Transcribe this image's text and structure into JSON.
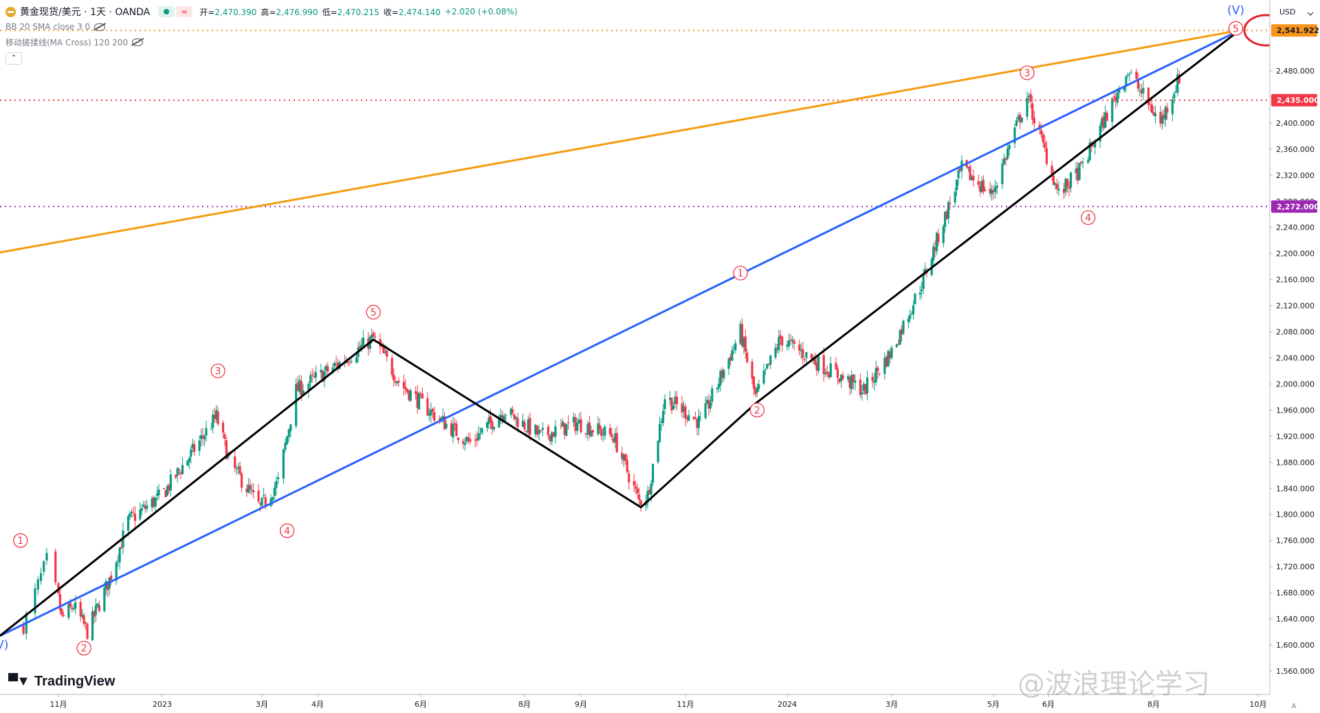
{
  "legend": {
    "symbol": "黄金现货/美元 · 1天 · OANDA",
    "open_label": "开",
    "open": "2,470.390",
    "high_label": "高",
    "high": "2,476.990",
    "low_label": "低",
    "low": "2,470.215",
    "close_label": "收",
    "close": "2,474.140",
    "change": "+2.020 (+0.08%)",
    "indicator1": "BB 20 SMA close 3 0",
    "indicator2": "移动搓揉线(MA Cross) 120 200",
    "collapse_glyph": "⌃"
  },
  "currency": "USD",
  "logo_text": "TradingView",
  "watermark": "@波浪理论学习",
  "colors": {
    "up": "#089981",
    "down": "#f23645",
    "blue": "#2962ff",
    "orange": "#f7931a",
    "black": "#000000",
    "red_line": "#e0212b",
    "purple": "#9c27b0",
    "orange_line": "#f39c12"
  },
  "chart_data": {
    "type": "candlestick",
    "title": "黄金现货/美元 · 1天 · OANDA",
    "ylim": [
      1580,
      2580
    ],
    "y_ticks": [
      "2,480.000",
      "2,440.000",
      "2,400.000",
      "2,360.000",
      "2,320.000",
      "2,280.000",
      "2,240.000",
      "2,200.000",
      "2,160.000",
      "2,120.000",
      "2,080.000",
      "2,040.000",
      "2,000.000",
      "1,960.000",
      "1,920.000",
      "1,880.000",
      "1,840.000",
      "1,800.000",
      "1,760.000",
      "1,720.000",
      "1,680.000",
      "1,640.000",
      "1,600.000",
      "1,560.000"
    ],
    "x_ticks": [
      "11月",
      "2023",
      "3月",
      "4月",
      "6月",
      "8月",
      "9月",
      "11月",
      "2024",
      "3月",
      "5月",
      "6月",
      "8月",
      "10月"
    ],
    "price_tags": [
      {
        "label": "2,541.922",
        "value": 2541.922,
        "color": "#f7931a"
      },
      {
        "label": "2,435.000",
        "value": 2435.0,
        "color": "#f23645"
      },
      {
        "label": "2,272.000",
        "value": 2272.0,
        "color": "#9c27b0"
      }
    ],
    "horizontal_lines": [
      {
        "value": 2541.922,
        "color": "#f7931a",
        "style": "dotted"
      },
      {
        "value": 2435.0,
        "color": "#f23645",
        "style": "dotted"
      },
      {
        "value": 2272.0,
        "color": "#9c27b0",
        "style": "dotted"
      }
    ],
    "path_points": [
      [
        "2022-10-20",
        1630
      ],
      [
        "2022-10-28",
        1730
      ],
      [
        "2022-11-03",
        1640
      ],
      [
        "2022-11-10",
        1660
      ],
      [
        "2022-11-18",
        1620
      ],
      [
        "2022-12-01",
        1700
      ],
      [
        "2022-12-12",
        1790
      ],
      [
        "2023-01-01",
        1830
      ],
      [
        "2023-01-20",
        1900
      ],
      [
        "2023-02-02",
        1950
      ],
      [
        "2023-02-10",
        1880
      ],
      [
        "2023-02-28",
        1810
      ],
      [
        "2023-03-10",
        1850
      ],
      [
        "2023-03-20",
        1990
      ],
      [
        "2023-04-13",
        2030
      ],
      [
        "2023-05-04",
        2070
      ],
      [
        "2023-05-20",
        2000
      ],
      [
        "2023-06-10",
        1950
      ],
      [
        "2023-06-30",
        1910
      ],
      [
        "2023-07-20",
        1960
      ],
      [
        "2023-08-10",
        1920
      ],
      [
        "2023-08-30",
        1940
      ],
      [
        "2023-09-20",
        1920
      ],
      [
        "2023-10-05",
        1820
      ],
      [
        "2023-10-10",
        1830
      ],
      [
        "2023-10-20",
        1980
      ],
      [
        "2023-11-10",
        1940
      ],
      [
        "2023-12-04",
        2080
      ],
      [
        "2023-12-13",
        1980
      ],
      [
        "2023-12-28",
        2070
      ],
      [
        "2024-01-20",
        2030
      ],
      [
        "2024-02-14",
        1990
      ],
      [
        "2024-03-01",
        2050
      ],
      [
        "2024-03-20",
        2160
      ],
      [
        "2024-04-12",
        2330
      ],
      [
        "2024-04-30",
        2290
      ],
      [
        "2024-05-20",
        2440
      ],
      [
        "2024-06-07",
        2290
      ],
      [
        "2024-06-20",
        2330
      ],
      [
        "2024-07-17",
        2480
      ],
      [
        "2024-08-05",
        2400
      ],
      [
        "2024-08-16",
        2470
      ]
    ],
    "trendlines": [
      {
        "name": "orange",
        "from": [
          "2022-10-10",
          2200
        ],
        "to": [
          "2024-09-20",
          2541.9
        ]
      },
      {
        "name": "blue",
        "from": [
          "2022-10-12",
          1614
        ],
        "to": [
          "2024-09-20",
          2541.9
        ]
      },
      {
        "name": "black-a",
        "points": [
          [
            "2022-10-12",
            1614
          ],
          [
            "2023-05-04",
            2068
          ],
          [
            "2023-10-06",
            1811
          ],
          [
            "2023-12-13",
            1970
          ],
          [
            "2024-09-20",
            2541.9
          ]
        ]
      }
    ],
    "wave_labels": [
      {
        "text": "1",
        "x": "2022-10-19",
        "y": 1760,
        "color": "#f23645"
      },
      {
        "text": "2",
        "x": "2022-11-16",
        "y": 1595,
        "color": "#f23645"
      },
      {
        "text": "3",
        "x": "2023-02-03",
        "y": 2020,
        "color": "#f23645"
      },
      {
        "text": "4",
        "x": "2023-03-15",
        "y": 1775,
        "color": "#f23645"
      },
      {
        "text": "5",
        "x": "2023-05-04",
        "y": 2110,
        "color": "#f23645"
      },
      {
        "text": "1",
        "x": "2023-12-04",
        "y": 2170,
        "color": "#f23645"
      },
      {
        "text": "2",
        "x": "2023-12-14",
        "y": 1960,
        "color": "#f23645"
      },
      {
        "text": "3",
        "x": "2024-05-20",
        "y": 2477,
        "color": "#f23645"
      },
      {
        "text": "4",
        "x": "2024-06-24",
        "y": 2255,
        "color": "#f23645"
      },
      {
        "text": "5",
        "x": "2024-09-18",
        "y": 2545,
        "color": "#f23645"
      },
      {
        "text": "(V)",
        "x": "2022-10-12",
        "y": 1594,
        "color": "#2962ff"
      },
      {
        "text": "(V)",
        "x": "2024-09-18",
        "y": 2567,
        "color": "#2962ff"
      }
    ]
  }
}
